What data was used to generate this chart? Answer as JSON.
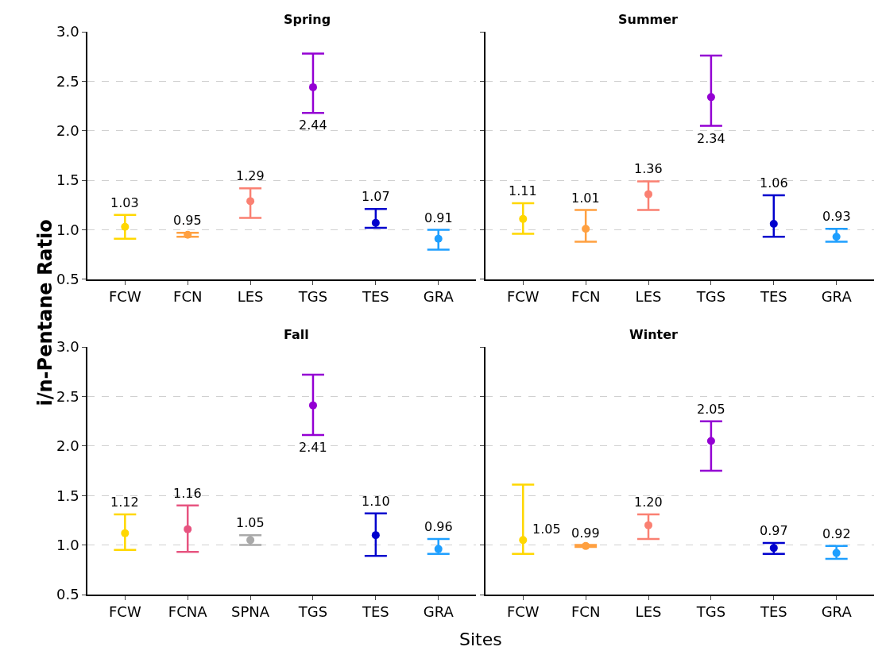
{
  "chart_data": [
    {
      "type": "scatter",
      "title": "Spring",
      "ylabel": "i/n-Pentane Ratio",
      "categories": [
        "FCW",
        "FCN",
        "LES",
        "TGS",
        "TES",
        "GRA"
      ],
      "values": [
        1.03,
        0.95,
        1.29,
        2.44,
        1.07,
        0.91
      ],
      "errors": [
        [
          0.91,
          1.15
        ],
        [
          0.93,
          0.97
        ],
        [
          1.12,
          1.42
        ],
        [
          2.18,
          2.78
        ],
        [
          1.02,
          1.21
        ],
        [
          0.8,
          1.0
        ]
      ],
      "value_labels": [
        "1.03",
        "0.95",
        "1.29",
        "2.44",
        "1.07",
        "0.91"
      ],
      "colors": [
        "#ffd700",
        "#ffa040",
        "#fa8072",
        "#9400d3",
        "#0000cd",
        "#1e9fff"
      ],
      "ylim": [
        0.5,
        3.0
      ],
      "yticks": [
        0.5,
        {
          "value": 1,
          "label": "1.0"
        },
        1.5,
        {
          "value": 2,
          "label": "2.0"
        },
        2.5,
        {
          "value": 3,
          "label": "3.0"
        }
      ],
      "grid": "y",
      "marker": "circle"
    },
    {
      "type": "scatter",
      "title": "Summer",
      "categories": [
        "FCW",
        "FCN",
        "LES",
        "TGS",
        "TES",
        "GRA"
      ],
      "values": [
        1.11,
        1.01,
        1.36,
        2.34,
        1.06,
        0.93
      ],
      "errors": [
        [
          0.96,
          1.27
        ],
        [
          0.88,
          1.2
        ],
        [
          1.2,
          1.49
        ],
        [
          2.05,
          2.76
        ],
        [
          0.93,
          1.35
        ],
        [
          0.88,
          1.01
        ]
      ],
      "value_labels": [
        "1.11",
        "1.01",
        "1.36",
        "2.34",
        "1.06",
        "0.93"
      ],
      "colors": [
        "#ffd700",
        "#ffa040",
        "#fa8072",
        "#9400d3",
        "#0000cd",
        "#1e9fff"
      ],
      "ylim": [
        0.5,
        3.0
      ],
      "yticks": [
        0.5,
        1,
        1.5,
        2,
        2.5,
        3
      ],
      "grid": "y",
      "tick_labels": "x",
      "marker": "circle"
    },
    {
      "type": "scatter",
      "title": "Fall",
      "xlabel": "Sites",
      "categories": [
        "FCW",
        "FCNA",
        "SPNA",
        "TGS",
        "TES",
        "GRA"
      ],
      "values": [
        1.12,
        1.16,
        1.05,
        2.41,
        1.1,
        0.96
      ],
      "errors": [
        [
          0.95,
          1.31
        ],
        [
          0.93,
          1.4
        ],
        [
          1.0,
          1.1
        ],
        [
          2.11,
          2.72
        ],
        [
          0.89,
          1.32
        ],
        [
          0.91,
          1.06
        ]
      ],
      "value_labels": [
        "1.12",
        "1.16",
        "1.05",
        "2.41",
        "1.10",
        "0.96"
      ],
      "colors": [
        "#ffd700",
        "#e75480",
        "#a9a9a9",
        "#9400d3",
        "#0000cd",
        "#1e9fff"
      ],
      "ylim": [
        0.5,
        3.0
      ],
      "yticks": [
        0.5,
        {
          "value": 1,
          "label": "1.0"
        },
        1.5,
        {
          "value": 2,
          "label": "2.0"
        },
        2.5,
        {
          "value": 3,
          "label": "3.0"
        }
      ],
      "grid": "y",
      "marker": "circle"
    },
    {
      "type": "scatter",
      "title": "Winter",
      "categories": [
        "FCW",
        "FCN",
        "LES",
        "TGS",
        "TES",
        "GRA"
      ],
      "values": [
        1.05,
        0.99,
        1.2,
        2.05,
        0.97,
        0.92
      ],
      "errors": [
        [
          0.91,
          1.61
        ],
        [
          0.98,
          1.0
        ],
        [
          1.06,
          1.31
        ],
        [
          1.75,
          2.25
        ],
        [
          0.91,
          1.02
        ],
        [
          0.86,
          0.99
        ]
      ],
      "value_labels": [
        "1.05",
        "0.99",
        "1.20",
        "2.05",
        "0.97",
        "0.92"
      ],
      "colors": [
        "#ffd700",
        "#ffa040",
        "#fa8072",
        "#9400d3",
        "#0000cd",
        "#1e9fff"
      ],
      "ylim": [
        0.5,
        3.0
      ],
      "yticks": [
        0.5,
        1,
        1.5,
        2,
        2.5,
        3
      ],
      "grid": "y",
      "tick_labels": "x",
      "marker": "circle"
    }
  ]
}
